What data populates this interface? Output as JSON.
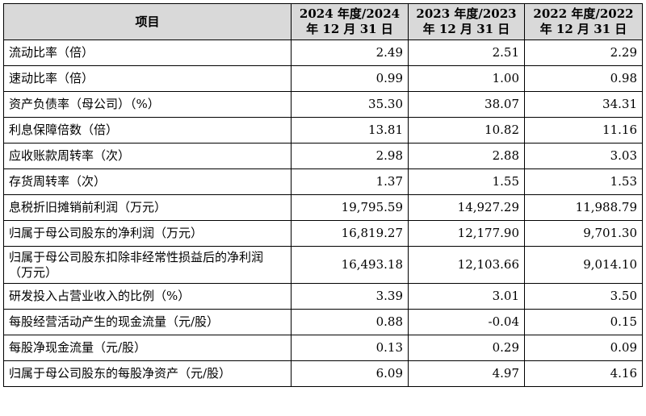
{
  "header": {
    "item": "项目",
    "col_2024": [
      "2024 年度/2024",
      "年 12 月 31 日"
    ],
    "col_2023": [
      "2023 年度/2023",
      "年 12 月 31 日"
    ],
    "col_2022": [
      "2022 年度/2022",
      "年 12 月 31 日"
    ]
  },
  "rows": [
    {
      "label": "流动比率（倍）",
      "v2024": "2.49",
      "v2023": "2.51",
      "v2022": "2.29"
    },
    {
      "label": "速动比率（倍）",
      "v2024": "0.99",
      "v2023": "1.00",
      "v2022": "0.98"
    },
    {
      "label": "资产负债率（母公司）（%）",
      "v2024": "35.30",
      "v2023": "38.07",
      "v2022": "34.31"
    },
    {
      "label": "利息保障倍数（倍）",
      "v2024": "13.81",
      "v2023": "10.82",
      "v2022": "11.16"
    },
    {
      "label": "应收账款周转率（次）",
      "v2024": "2.98",
      "v2023": "2.88",
      "v2022": "3.03"
    },
    {
      "label": "存货周转率（次）",
      "v2024": "1.37",
      "v2023": "1.55",
      "v2022": "1.53"
    },
    {
      "label": "息税折旧摊销前利润（万元）",
      "v2024": "19,795.59",
      "v2023": "14,927.29",
      "v2022": "11,988.79"
    },
    {
      "label": "归属于母公司股东的净利润（万元）",
      "v2024": "16,819.27",
      "v2023": "12,177.90",
      "v2022": "9,701.30"
    },
    {
      "label": "归属于母公司股东扣除非经常性损益后的净利润（万元）",
      "v2024": "16,493.18",
      "v2023": "12,103.66",
      "v2022": "9,014.10"
    },
    {
      "label": "研发投入占营业收入的比例（%）",
      "v2024": "3.39",
      "v2023": "3.01",
      "v2022": "3.50"
    },
    {
      "label": "每股经营活动产生的现金流量（元/股）",
      "v2024": "0.88",
      "v2023": "-0.04",
      "v2022": "0.15"
    },
    {
      "label": "每股净现金流量（元/股）",
      "v2024": "0.13",
      "v2023": "0.29",
      "v2022": "0.09"
    },
    {
      "label": "归属于母公司股东的每股净资产（元/股）",
      "v2024": "6.09",
      "v2023": "4.97",
      "v2022": "4.16"
    }
  ]
}
